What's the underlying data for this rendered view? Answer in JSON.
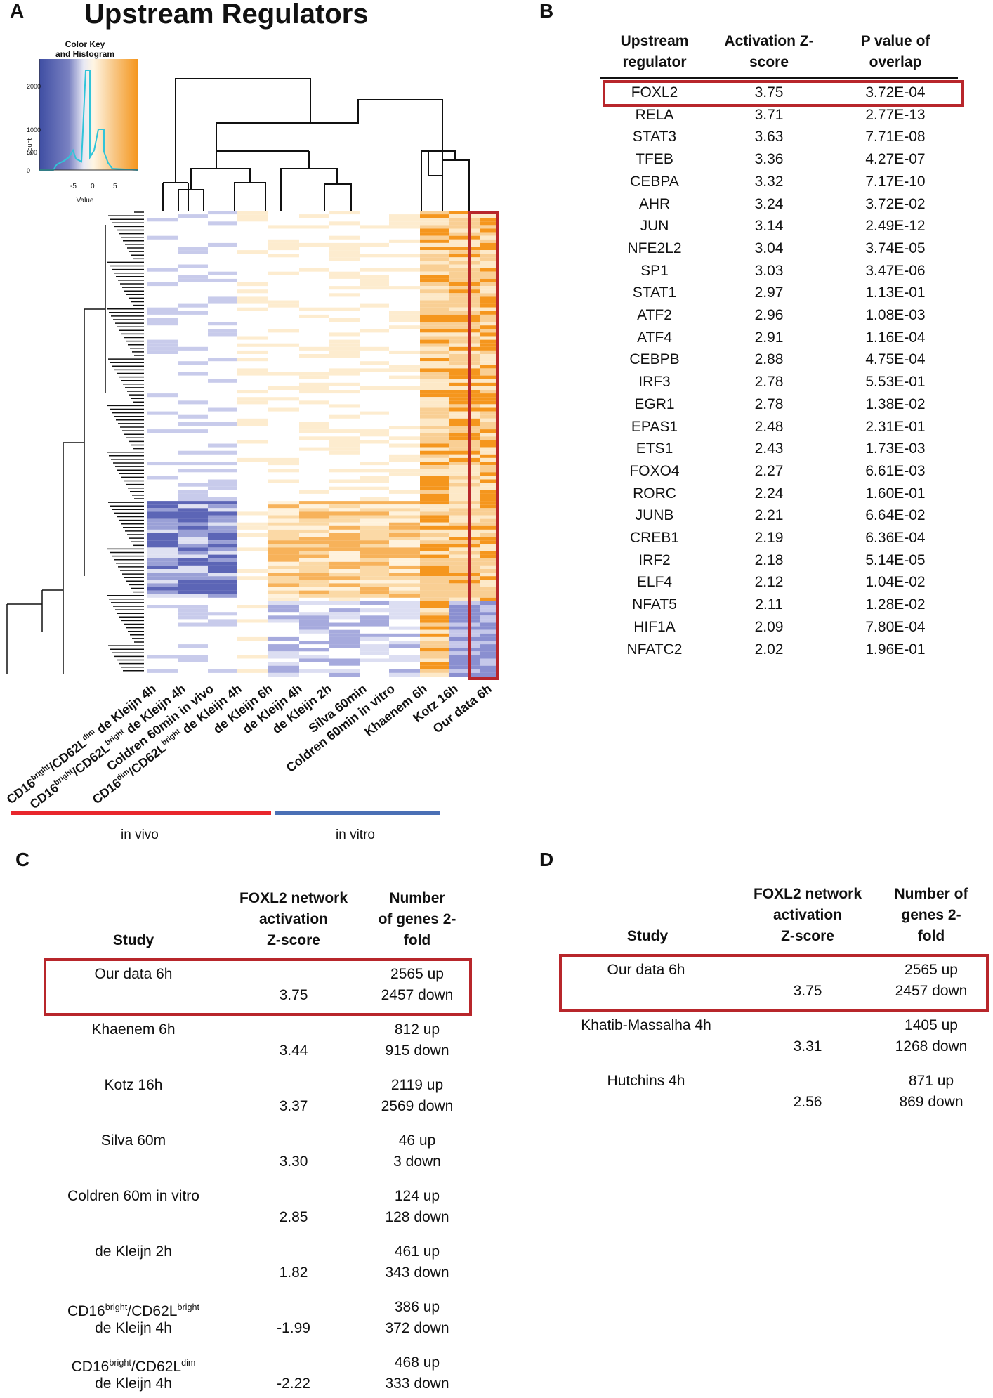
{
  "panel_a": {
    "letter": "A",
    "title": "Upstream Regulators",
    "color_key": {
      "title_line1": "Color Key",
      "title_line2": "and Histogram",
      "ylabel": "Count",
      "xlabel": "Value",
      "x_ticks": [
        "-5",
        "0",
        "5"
      ],
      "y_ticks": [
        "0",
        "500",
        "1000",
        "2000"
      ]
    },
    "columns": [
      {
        "pre": "CD16",
        "sup1": "bright",
        "mid": "/CD62L",
        "sup2": "dim",
        "post": " de Kleijn 4h"
      },
      {
        "pre": "CD16",
        "sup1": "bright",
        "mid": "/CD62L",
        "sup2": "bright",
        "post": " de Kleijn 4h"
      },
      {
        "pre": "Coldren 60min in vivo",
        "sup1": "",
        "mid": "",
        "sup2": "",
        "post": ""
      },
      {
        "pre": "CD16",
        "sup1": "dim",
        "mid": "/CD62L",
        "sup2": "bright",
        "post": " de Kleijn 4h"
      },
      {
        "pre": "de Kleijn 6h",
        "sup1": "",
        "mid": "",
        "sup2": "",
        "post": ""
      },
      {
        "pre": "de Kleijn 4h",
        "sup1": "",
        "mid": "",
        "sup2": "",
        "post": ""
      },
      {
        "pre": "de Kleijn 2h",
        "sup1": "",
        "mid": "",
        "sup2": "",
        "post": ""
      },
      {
        "pre": "Silva 60min",
        "sup1": "",
        "mid": "",
        "sup2": "",
        "post": ""
      },
      {
        "pre": "Coldren 60min in vitro",
        "sup1": "",
        "mid": "",
        "sup2": "",
        "post": ""
      },
      {
        "pre": "Khaenem 6h",
        "sup1": "",
        "mid": "",
        "sup2": "",
        "post": ""
      },
      {
        "pre": "Kotz 16h",
        "sup1": "",
        "mid": "",
        "sup2": "",
        "post": ""
      },
      {
        "pre": "Our data 6h",
        "sup1": "",
        "mid": "",
        "sup2": "",
        "post": ""
      }
    ],
    "group_labels": {
      "in_vivo": "in vivo",
      "in_vitro": "in vitro"
    },
    "colors": {
      "in_vivo_bar": "#e8262c",
      "in_vitro_bar": "#4a6fb5",
      "highlight": "#b8262b",
      "blue": "#3f4ea3",
      "orange": "#f5961d"
    }
  },
  "panel_b": {
    "letter": "B",
    "headers": [
      "Upstream regulator",
      "Activation Z-score",
      "P value of overlap"
    ],
    "rows": [
      [
        "FOXL2",
        "3.75",
        "3.72E-04"
      ],
      [
        "RELA",
        "3.71",
        "2.77E-13"
      ],
      [
        "STAT3",
        "3.63",
        "7.71E-08"
      ],
      [
        "TFEB",
        "3.36",
        "4.27E-07"
      ],
      [
        "CEBPA",
        "3.32",
        "7.17E-10"
      ],
      [
        "AHR",
        "3.24",
        "3.72E-02"
      ],
      [
        "JUN",
        "3.14",
        "2.49E-12"
      ],
      [
        "NFE2L2",
        "3.04",
        "3.74E-05"
      ],
      [
        "SP1",
        "3.03",
        "3.47E-06"
      ],
      [
        "STAT1",
        "2.97",
        "1.13E-01"
      ],
      [
        "ATF2",
        "2.96",
        "1.08E-03"
      ],
      [
        "ATF4",
        "2.91",
        "1.16E-04"
      ],
      [
        "CEBPB",
        "2.88",
        "4.75E-04"
      ],
      [
        "IRF3",
        "2.78",
        "5.53E-01"
      ],
      [
        "EGR1",
        "2.78",
        "1.38E-02"
      ],
      [
        "EPAS1",
        "2.48",
        "2.31E-01"
      ],
      [
        "ETS1",
        "2.43",
        "1.73E-03"
      ],
      [
        "FOXO4",
        "2.27",
        "6.61E-03"
      ],
      [
        "RORC",
        "2.24",
        "1.60E-01"
      ],
      [
        "JUNB",
        "2.21",
        "6.64E-02"
      ],
      [
        "CREB1",
        "2.19",
        "6.36E-04"
      ],
      [
        "IRF2",
        "2.18",
        "5.14E-05"
      ],
      [
        "ELF4",
        "2.12",
        "1.04E-02"
      ],
      [
        "NFAT5",
        "2.11",
        "1.28E-02"
      ],
      [
        "HIF1A",
        "2.09",
        "7.80E-04"
      ],
      [
        "NFATC2",
        "2.02",
        "1.96E-01"
      ]
    ]
  },
  "panel_c": {
    "letter": "C",
    "headers": {
      "study": "Study",
      "z_line1": "FOXL2 network",
      "z_line2": "activation",
      "z_line3": "Z-score",
      "n_line1": "Number",
      "n_line2": "of genes 2-",
      "n_line3": "fold"
    },
    "rows": [
      {
        "study": "Our data 6h",
        "study2": "",
        "z": "3.75",
        "up": "2565 up",
        "down": "2457 down"
      },
      {
        "study": "Khaenem 6h",
        "study2": "",
        "z": "3.44",
        "up": "812 up",
        "down": "915 down"
      },
      {
        "study": "Kotz 16h",
        "study2": "",
        "z": "3.37",
        "up": "2119 up",
        "down": "2569 down"
      },
      {
        "study": "Silva 60m",
        "study2": "",
        "z": "3.30",
        "up": "46 up",
        "down": "3 down"
      },
      {
        "study": "Coldren 60m in vitro",
        "study2": "",
        "z": "2.85",
        "up": "124 up",
        "down": "128 down"
      },
      {
        "study": "de Kleijn 2h",
        "study2": "",
        "z": "1.82",
        "up": "461 up",
        "down": "343 down"
      },
      {
        "study": "CD16",
        "sup1": "bright",
        "mid": "/CD62L",
        "sup2": "bright",
        "study2": "de Kleijn 4h",
        "z": "-1.99",
        "up": "386 up",
        "down": "372 down"
      },
      {
        "study": "CD16",
        "sup1": "bright",
        "mid": "/CD62L",
        "sup2": "dim",
        "study2": "de Kleijn 4h",
        "z": "-2.22",
        "up": "468 up",
        "down": "333 down"
      }
    ]
  },
  "panel_d": {
    "letter": "D",
    "headers": {
      "study": "Study",
      "z_line1": "FOXL2 network",
      "z_line2": "activation",
      "z_line3": "Z-score",
      "n_line1": "Number of",
      "n_line2": "genes 2-",
      "n_line3": "fold"
    },
    "rows": [
      {
        "study": "Our data 6h",
        "z": "3.75",
        "up": "2565 up",
        "down": "2457 down"
      },
      {
        "study": "Khatib-Massalha 4h",
        "z": "3.31",
        "up": "1405 up",
        "down": "1268 down"
      },
      {
        "study": "Hutchins 4h",
        "z": "2.56",
        "up": "871 up",
        "down": "869 down"
      }
    ]
  }
}
